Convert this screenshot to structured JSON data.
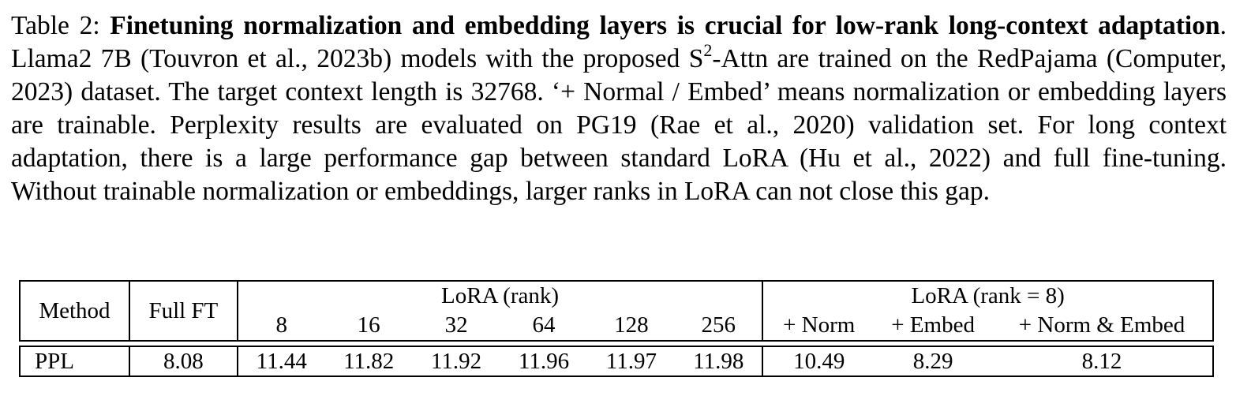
{
  "caption": {
    "label": "Table 2:",
    "bold_title": "Finetuning normalization and embedding layers is crucial for low-rank long-context adaptation",
    "body_part1": ". Llama2 7B (Touvron et al., 2023b) models with the proposed S",
    "superscript": "2",
    "body_part2": "-Attn are trained on the RedPajama (Computer, 2023) dataset. The target context length is 32768. ‘+ Normal / Embed’ means normalization or embedding layers are trainable. Perplexity results are evaluated on PG19 (Rae et al., 2020) validation set. For long context adaptation, there is a large performance gap between standard LoRA (Hu et al., 2022) and full fine-tuning. Without trainable normalization or embeddings, larger ranks in LoRA can not close this gap."
  },
  "table": {
    "method_header": "Method",
    "full_ft_header": "Full FT",
    "lora_rank_header": "LoRA (rank)",
    "lora_rank8_header": "LoRA (rank = 8)",
    "ranks": [
      "8",
      "16",
      "32",
      "64",
      "128",
      "256"
    ],
    "variants": [
      "+ Norm",
      "+ Embed",
      "+ Norm & Embed"
    ],
    "row_label": "PPL",
    "full_ft_value": "8.08",
    "rank_values": [
      "11.44",
      "11.82",
      "11.92",
      "11.96",
      "11.97",
      "11.98"
    ],
    "variant_values": [
      "10.49",
      "8.29",
      "8.12"
    ]
  }
}
